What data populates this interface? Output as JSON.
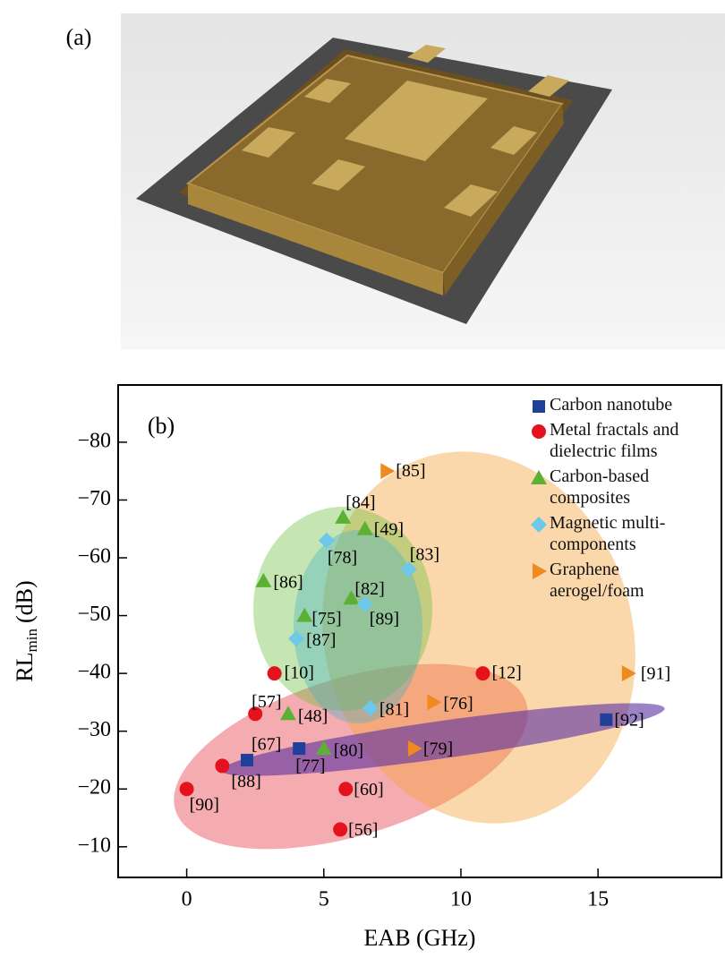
{
  "panel_a": {
    "label": "(a)"
  },
  "chart_data": {
    "type": "scatter",
    "panel_label": "(b)",
    "x_label": "EAB (GHz)",
    "y_label": {
      "main": "RL",
      "sub": "min",
      "unit": "(dB)"
    },
    "xlim": [
      -2.5,
      19.5
    ],
    "xticks": [
      0,
      5,
      10,
      15
    ],
    "ylim": [
      -4.7,
      -89.9
    ],
    "yticks": [
      {
        "value": -10,
        "label": "−10"
      },
      {
        "value": -20,
        "label": "−20"
      },
      {
        "value": -30,
        "label": "−30"
      },
      {
        "value": -40,
        "label": "−40"
      },
      {
        "value": -50,
        "label": "−50"
      },
      {
        "value": -60,
        "label": "−60"
      },
      {
        "value": -70,
        "label": "−70"
      },
      {
        "value": -80,
        "label": "−80"
      }
    ],
    "legend": "top-right",
    "series": [
      {
        "name": "Carbon nanotube",
        "color": "#1f3f99",
        "marker": "square",
        "x": [
          2.2,
          4.1,
          15.3
        ],
        "values": [
          -25,
          -27,
          -32
        ],
        "labels": [
          "[67]",
          "[77]",
          "[92]"
        ]
      },
      {
        "name": "Metal fractals and dielectric films",
        "color": "#e3121d",
        "marker": "circle",
        "x": [
          0.0,
          1.3,
          2.5,
          3.2,
          5.8,
          5.6,
          10.8
        ],
        "values": [
          -20,
          -24,
          -33,
          -40,
          -20,
          -13,
          -40
        ],
        "labels": [
          "[90]",
          "[88]",
          "[57]",
          "[10]",
          "[60]",
          "[56]",
          "[12]"
        ]
      },
      {
        "name": "Carbon-based composites",
        "color": "#5cb135",
        "marker": "triangle-up",
        "x": [
          2.8,
          5.7,
          6.5,
          4.3,
          6.0,
          3.7,
          5.0
        ],
        "values": [
          -56,
          -67,
          -65,
          -50,
          -53,
          -33,
          -27
        ],
        "labels": [
          "[86]",
          "[84]",
          "[49]",
          "[75]",
          "[82]",
          "[48]",
          "[80]"
        ]
      },
      {
        "name": "Magnetic multi-components",
        "color": "#6ec8e8",
        "marker": "diamond",
        "x": [
          5.1,
          8.1,
          6.5,
          4.0,
          6.7
        ],
        "values": [
          -63,
          -58,
          -52,
          -46,
          -34
        ],
        "labels": [
          "[78]",
          "[83]",
          "[89]",
          "[87]",
          "[81]"
        ]
      },
      {
        "name": "Graphene aerogel/foam",
        "color": "#f08a1e",
        "marker": "triangle-right",
        "x": [
          7.3,
          16.1,
          9.0,
          8.3
        ],
        "values": [
          -75,
          -40,
          -35,
          -27
        ],
        "labels": [
          "[85]",
          "[91]",
          "[76]",
          "[79]"
        ]
      }
    ]
  }
}
